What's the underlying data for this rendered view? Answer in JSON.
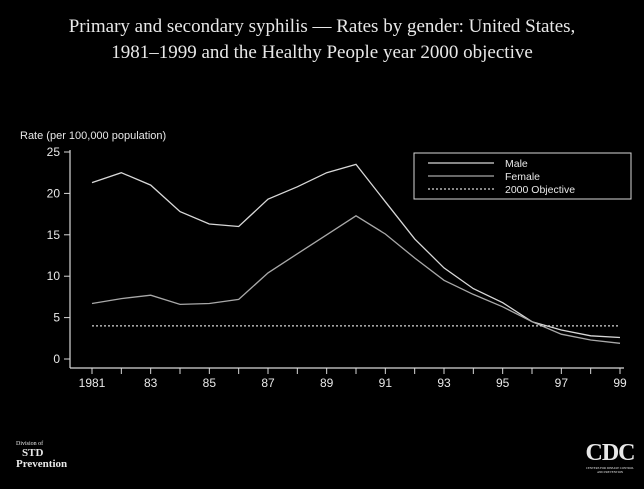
{
  "chart_data": {
    "type": "line",
    "title_lines": [
      "Primary and secondary syphilis — Rates by gender: United States,",
      "1981–1999 and the Healthy People year 2000 objective"
    ],
    "ylabel": "Rate (per 100,000 population)",
    "xlabel": "",
    "x": [
      1981,
      1982,
      1983,
      1984,
      1985,
      1986,
      1987,
      1988,
      1989,
      1990,
      1991,
      1992,
      1993,
      1994,
      1995,
      1996,
      1997,
      1998,
      1999
    ],
    "xticks": [
      1981,
      1982,
      1983,
      1984,
      1985,
      1986,
      1987,
      1988,
      1989,
      1990,
      1991,
      1992,
      1993,
      1994,
      1995,
      1996,
      1997,
      1998,
      1999
    ],
    "xtick_labels": [
      "1981",
      "",
      "83",
      "",
      "85",
      "",
      "87",
      "",
      "89",
      "",
      "91",
      "",
      "93",
      "",
      "95",
      "",
      "97",
      "",
      "99"
    ],
    "ylim": [
      0,
      25
    ],
    "yticks": [
      0,
      5,
      10,
      15,
      20,
      25
    ],
    "ytick_labels": [
      "0",
      "5",
      "10",
      "15",
      "20",
      "25"
    ],
    "grid": false,
    "legend_position": "top-right",
    "series": [
      {
        "name": "Male",
        "style": "solid",
        "color": "#d8d8d8",
        "values": [
          21.3,
          22.5,
          21.0,
          17.8,
          16.3,
          16.0,
          19.3,
          20.8,
          22.5,
          23.5,
          19.0,
          14.5,
          11.0,
          8.5,
          6.8,
          4.5,
          3.5,
          2.8,
          2.6
        ]
      },
      {
        "name": "Female",
        "style": "solid",
        "color": "#a8a8a8",
        "values": [
          6.7,
          7.3,
          7.7,
          6.6,
          6.7,
          7.2,
          10.4,
          12.7,
          15.0,
          17.3,
          15.1,
          12.2,
          9.5,
          7.8,
          6.3,
          4.5,
          3.0,
          2.3,
          1.9
        ]
      },
      {
        "name": "2000 Objective",
        "style": "dotted",
        "color": "#d8d8d8",
        "values": [
          4.0,
          4.0,
          4.0,
          4.0,
          4.0,
          4.0,
          4.0,
          4.0,
          4.0,
          4.0,
          4.0,
          4.0,
          4.0,
          4.0,
          4.0,
          4.0,
          4.0,
          4.0,
          4.0
        ]
      }
    ]
  },
  "footer": {
    "division_of": "Division of",
    "std": "STD",
    "prevention": "Prevention",
    "cdc_logo": "CDC",
    "cdc_tagline": "CENTERS FOR DISEASE CONTROL AND PREVENTION"
  },
  "colors": {
    "background": "#000000",
    "text": "#e8e8e8",
    "axis": "#d8d8d8"
  }
}
